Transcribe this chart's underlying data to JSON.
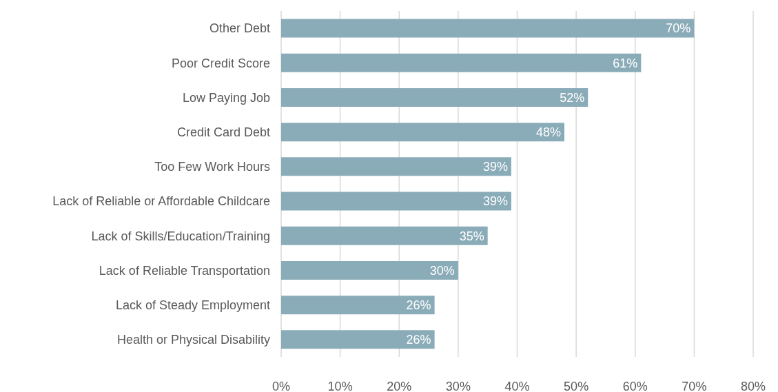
{
  "chart_data": {
    "type": "bar",
    "orientation": "horizontal",
    "categories": [
      "Other Debt",
      "Poor Credit Score",
      "Low Paying Job",
      "Credit Card Debt",
      "Too Few Work Hours",
      "Lack of Reliable or Affordable Childcare",
      "Lack of Skills/Education/Training",
      "Lack of Reliable Transportation",
      "Lack of Steady Employment",
      "Health or Physical Disability"
    ],
    "values": [
      70,
      61,
      52,
      48,
      39,
      39,
      35,
      30,
      26,
      26
    ],
    "value_labels": [
      "70%",
      "61%",
      "52%",
      "48%",
      "39%",
      "39%",
      "35%",
      "30%",
      "26%",
      "26%"
    ],
    "color": "#8aacb8",
    "xlim": [
      0,
      80
    ],
    "xticks": [
      {
        "value": 0,
        "label": "0%"
      },
      {
        "value": 10,
        "label": "10%"
      },
      {
        "value": 20,
        "label": "20%"
      },
      {
        "value": 30,
        "label": "30%"
      },
      {
        "value": 40,
        "label": "40%"
      },
      {
        "value": 50,
        "label": "50%"
      },
      {
        "value": 60,
        "label": "60%"
      },
      {
        "value": 70,
        "label": "70%"
      },
      {
        "value": 80,
        "label": "80%"
      }
    ],
    "grid": "x"
  }
}
